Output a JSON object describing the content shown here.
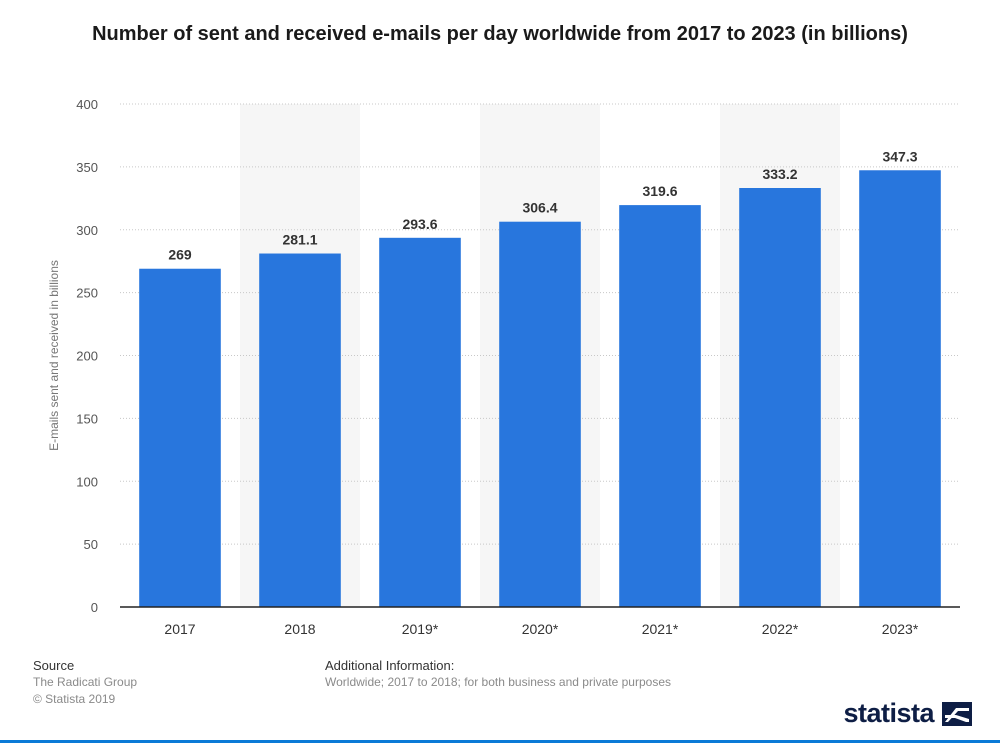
{
  "title": "Number of sent and received e-mails per day worldwide from 2017 to 2023 (in billions)",
  "footer": {
    "source_header": "Source",
    "source_name": "The Radicati Group",
    "copyright": "© Statista 2019",
    "info_header": "Additional Information:",
    "info_text": "Worldwide; 2017 to 2018; for both business and private purposes",
    "logo": "statista"
  },
  "colors": {
    "bar": "#2876dd",
    "band": "#f6f6f6",
    "grid": "#c8c8c8"
  },
  "chart_data": {
    "type": "bar",
    "title": "Number of sent and received e-mails per day worldwide from 2017 to 2023 (in billions)",
    "xlabel": "",
    "ylabel": "E-mails sent and received in billions",
    "categories": [
      "2017",
      "2018",
      "2019*",
      "2020*",
      "2021*",
      "2022*",
      "2023*"
    ],
    "values": [
      269,
      281.1,
      293.6,
      306.4,
      319.6,
      333.2,
      347.3
    ],
    "value_labels": [
      "269",
      "281.1",
      "293.6",
      "306.4",
      "319.6",
      "333.2",
      "347.3"
    ],
    "ylim": [
      0,
      400
    ],
    "yticks": [
      0,
      50,
      100,
      150,
      200,
      250,
      300,
      350,
      400
    ],
    "grid": true,
    "legend": "none"
  }
}
